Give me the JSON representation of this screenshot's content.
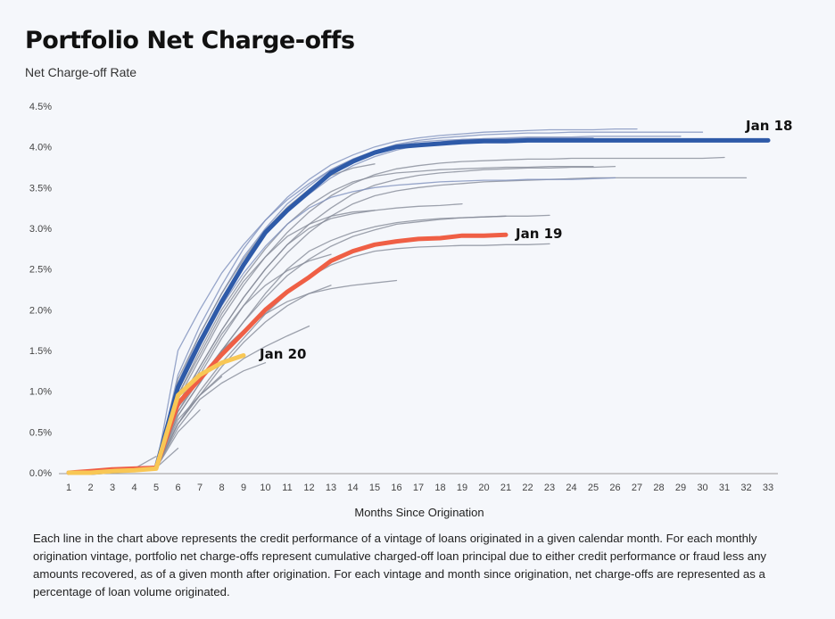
{
  "header": {
    "title": "Portfolio Net Charge-offs",
    "subtitle": "Net Charge-off Rate"
  },
  "caption": "Each line in the chart above represents the credit performance of a vintage of loans originated in a given calendar month. For each monthly origination vintage, portfolio net charge-offs represent cumulative charged-off loan principal due to either credit performance or fraud less any amounts recovered, as of a given month after origination. For each vintage and month since origination, net charge-offs are represented as a percentage of loan volume originated.",
  "colors": {
    "jan18": "#2e5aa8",
    "jan19": "#ef5f45",
    "jan20": "#f8c755",
    "gray": "#868b98",
    "bluegray": "#7e90bd",
    "axis": "#9a9a9a"
  },
  "chart_data": {
    "type": "line",
    "title": "Portfolio Net Charge-offs",
    "ylabel": "Net Charge-off Rate",
    "xlabel": "Months Since Origination",
    "xlim": [
      1,
      33
    ],
    "ylim": [
      0,
      4.5
    ],
    "x_ticks": [
      "1",
      "2",
      "3",
      "4",
      "5",
      "6",
      "7",
      "8",
      "9",
      "10",
      "11",
      "12",
      "13",
      "14",
      "15",
      "16",
      "17",
      "18",
      "19",
      "20",
      "21",
      "22",
      "23",
      "24",
      "25",
      "26",
      "27",
      "28",
      "29",
      "30",
      "31",
      "32",
      "33"
    ],
    "y_ticks": [
      "0.0%",
      "0.5%",
      "1.0%",
      "1.5%",
      "2.0%",
      "2.5%",
      "3.0%",
      "3.5%",
      "4.0%",
      "4.5%"
    ],
    "y_tick_values": [
      0,
      0.5,
      1.0,
      1.5,
      2.0,
      2.5,
      3.0,
      3.5,
      4.0,
      4.5
    ],
    "highlighted_series": [
      {
        "name": "Jan 18",
        "color": "#2e5aa8",
        "x": [
          1,
          2,
          3,
          4,
          5,
          6,
          7,
          8,
          9,
          10,
          11,
          12,
          13,
          14,
          15,
          16,
          17,
          18,
          19,
          20,
          21,
          22,
          23,
          24,
          25,
          26,
          27,
          28,
          29,
          30,
          31,
          32,
          33
        ],
        "values": [
          0,
          0,
          0.02,
          0.04,
          0.06,
          1.05,
          1.6,
          2.1,
          2.55,
          2.95,
          3.22,
          3.45,
          3.68,
          3.82,
          3.93,
          4.0,
          4.02,
          4.04,
          4.06,
          4.07,
          4.07,
          4.08,
          4.08,
          4.08,
          4.08,
          4.08,
          4.08,
          4.08,
          4.08,
          4.08,
          4.08,
          4.08,
          4.08
        ]
      },
      {
        "name": "Jan 19",
        "color": "#ef5f45",
        "x": [
          1,
          2,
          3,
          4,
          5,
          6,
          7,
          8,
          9,
          10,
          11,
          12,
          13,
          14,
          15,
          16,
          17,
          18,
          19,
          20,
          21
        ],
        "values": [
          0,
          0.02,
          0.04,
          0.05,
          0.06,
          0.85,
          1.15,
          1.45,
          1.72,
          2.0,
          2.22,
          2.4,
          2.6,
          2.72,
          2.8,
          2.84,
          2.87,
          2.88,
          2.91,
          2.91,
          2.92
        ]
      },
      {
        "name": "Jan 20",
        "color": "#f8c755",
        "x": [
          1,
          2,
          3,
          4,
          5,
          6,
          7,
          8,
          9
        ],
        "values": [
          0,
          0,
          0.02,
          0.03,
          0.05,
          0.95,
          1.2,
          1.35,
          1.44
        ]
      }
    ],
    "other_series": [
      {
        "values": [
          0,
          0.01,
          0.02,
          0.04,
          0.05,
          1.2,
          1.8,
          2.3,
          2.75,
          3.1,
          3.38,
          3.6,
          3.78,
          3.9,
          4.0,
          4.07,
          4.11,
          4.14,
          4.16,
          4.18,
          4.19,
          4.2,
          4.21,
          4.21,
          4.21,
          4.22,
          4.22
        ]
      },
      {
        "values": [
          0,
          0.01,
          0.02,
          0.04,
          0.05,
          1.1,
          1.7,
          2.2,
          2.65,
          3.0,
          3.3,
          3.52,
          3.72,
          3.85,
          3.95,
          4.03,
          4.08,
          4.11,
          4.13,
          4.15,
          4.16,
          4.17,
          4.17,
          4.18,
          4.18,
          4.18,
          4.18,
          4.18,
          4.18,
          4.18
        ]
      },
      {
        "values": [
          0,
          0.01,
          0.02,
          0.04,
          0.05,
          1.0,
          1.6,
          2.1,
          2.55,
          2.92,
          3.2,
          3.42,
          3.62,
          3.77,
          3.88,
          3.96,
          4.02,
          4.06,
          4.09,
          4.1,
          4.11,
          4.12,
          4.12,
          4.12,
          4.13,
          4.13,
          4.13,
          4.13,
          4.13
        ]
      },
      {
        "values": [
          0,
          0.01,
          0.02,
          0.04,
          0.05,
          1.5,
          2.0,
          2.45,
          2.8,
          3.1,
          3.35,
          3.55,
          3.72,
          3.85,
          3.95,
          4.02,
          4.06,
          4.08,
          4.09,
          4.1,
          4.1,
          4.11,
          4.11,
          4.11,
          4.11
        ]
      },
      {
        "values": [
          0,
          0.01,
          0.02,
          0.04,
          0.05,
          0.9,
          1.4,
          1.9,
          2.3,
          2.65,
          2.95,
          3.2,
          3.4,
          3.55,
          3.66,
          3.73,
          3.77,
          3.8,
          3.82,
          3.83,
          3.84,
          3.85,
          3.85,
          3.86,
          3.86,
          3.86,
          3.86,
          3.86,
          3.86,
          3.86,
          3.87
        ]
      },
      {
        "values": [
          0,
          0.01,
          0.02,
          0.04,
          0.05,
          0.8,
          1.3,
          1.75,
          2.15,
          2.5,
          2.8,
          3.05,
          3.25,
          3.42,
          3.53,
          3.6,
          3.65,
          3.68,
          3.7,
          3.72,
          3.73,
          3.74,
          3.74,
          3.75,
          3.75,
          3.76
        ]
      },
      {
        "values": [
          0,
          0.01,
          0.02,
          0.04,
          0.05,
          0.75,
          1.2,
          1.65,
          2.05,
          2.4,
          2.7,
          2.95,
          3.15,
          3.3,
          3.4,
          3.46,
          3.5,
          3.53,
          3.55,
          3.57,
          3.58,
          3.59,
          3.6,
          3.61,
          3.62,
          3.62,
          3.62,
          3.62,
          3.62,
          3.62,
          3.62,
          3.62
        ]
      },
      {
        "values": [
          0,
          0.01,
          0.02,
          0.04,
          0.05,
          0.95,
          1.5,
          2.0,
          2.4,
          2.75,
          3.05,
          3.28,
          3.45,
          3.57,
          3.64,
          3.68,
          3.7,
          3.72,
          3.73,
          3.74,
          3.75,
          3.75,
          3.76,
          3.76,
          3.76
        ]
      },
      {
        "values": [
          0,
          0.01,
          0.02,
          0.04,
          0.05,
          0.7,
          1.1,
          1.5,
          1.85,
          2.15,
          2.42,
          2.62,
          2.78,
          2.9,
          2.98,
          3.05,
          3.08,
          3.11,
          3.13,
          3.14,
          3.15
        ]
      },
      {
        "values": [
          0,
          0.01,
          0.02,
          0.04,
          0.05,
          0.6,
          1.0,
          1.35,
          1.65,
          1.95,
          2.2,
          2.4,
          2.55,
          2.65,
          2.72,
          2.75,
          2.77,
          2.78,
          2.79,
          2.79,
          2.8,
          2.8,
          2.81
        ]
      },
      {
        "values": [
          0,
          0.01,
          0.02,
          0.04,
          0.05,
          0.85,
          1.3,
          1.75,
          2.15,
          2.5,
          2.8,
          3.0,
          3.12,
          3.18,
          3.22,
          3.25,
          3.27,
          3.28,
          3.3
        ]
      },
      {
        "values": [
          0,
          0.01,
          0.02,
          0.04,
          0.05,
          0.95,
          1.45,
          1.95,
          2.35,
          2.65,
          2.9,
          3.05,
          3.15,
          3.2,
          3.22
        ]
      },
      {
        "values": [
          0,
          0.01,
          0.02,
          0.04,
          0.05,
          0.7,
          1.1,
          1.5,
          1.85,
          2.2,
          2.5,
          2.72,
          2.85,
          2.95,
          3.02,
          3.07,
          3.1,
          3.12,
          3.13,
          3.14,
          3.15,
          3.15,
          3.16
        ]
      },
      {
        "values": [
          0,
          0.01,
          0.02,
          0.04,
          0.05,
          1.0,
          1.55,
          2.05,
          2.45,
          2.78,
          3.05,
          3.25,
          3.38,
          3.45,
          3.5,
          3.53,
          3.55,
          3.57,
          3.58,
          3.59,
          3.59,
          3.6,
          3.6,
          3.6,
          3.61,
          3.62
        ]
      },
      {
        "values": [
          0,
          0.01,
          0.02,
          0.04,
          0.05,
          1.15,
          1.7,
          2.2,
          2.62,
          2.98,
          3.26,
          3.48,
          3.65,
          3.74,
          3.79
        ]
      },
      {
        "values": [
          0,
          0.01,
          0.02,
          0.04,
          0.05,
          0.6,
          0.95,
          1.3,
          1.6,
          1.85,
          2.05,
          2.2,
          2.3
        ]
      },
      {
        "values": [
          0,
          0.01,
          0.02,
          0.04,
          0.05,
          0.8,
          1.15,
          1.5,
          1.7
        ]
      },
      {
        "values": [
          0,
          0.01,
          0.02,
          0.04,
          0.05,
          0.75,
          1.15,
          1.5,
          1.75,
          1.95,
          2.1,
          2.2,
          2.26,
          2.3,
          2.33,
          2.36
        ]
      },
      {
        "values": [
          0,
          0.01,
          0.02,
          0.04,
          0.05,
          0.8,
          1.25,
          1.7,
          2.05,
          2.3,
          2.48,
          2.6,
          2.68
        ]
      },
      {
        "values": [
          0,
          0.01,
          0.02,
          0.04,
          0.05,
          0.65,
          0.95,
          1.2,
          1.4,
          1.55,
          1.68,
          1.8
        ]
      },
      {
        "values": [
          0,
          0.01,
          0.02,
          0.04,
          0.05,
          0.55,
          0.9,
          1.1,
          1.25,
          1.35
        ]
      },
      {
        "values": [
          0,
          0.01,
          0.02,
          0.04,
          0.05,
          0.6,
          0.95,
          1.18
        ]
      },
      {
        "values": [
          0,
          0.01,
          0.02,
          0.04,
          0.05,
          0.5,
          0.77
        ]
      },
      {
        "values": [
          0,
          0.01,
          0.02,
          0.04,
          0.06,
          0.3
        ]
      },
      {
        "values": [
          0,
          0.01,
          0.02,
          0.05,
          0.2
        ]
      }
    ]
  }
}
